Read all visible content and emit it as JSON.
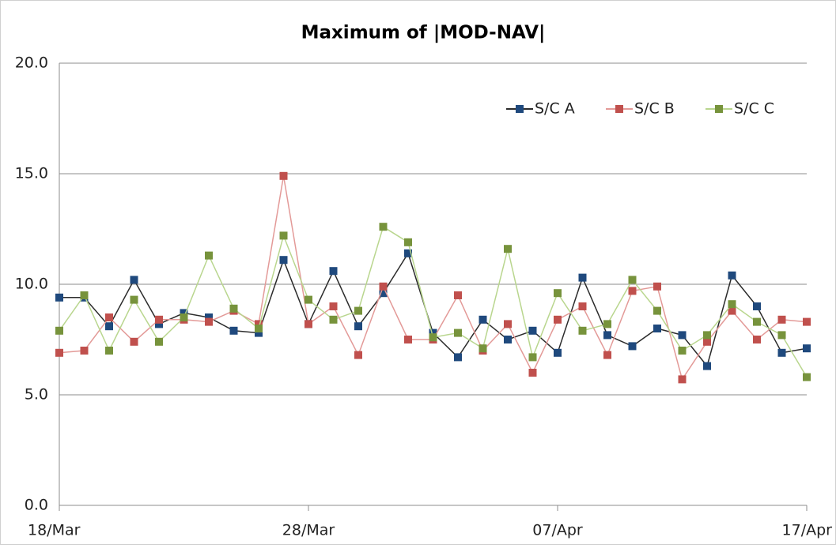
{
  "chart_data": {
    "type": "line",
    "title": "Maximum of |MOD-NAV|",
    "categories": [
      "18/Mar",
      null,
      null,
      null,
      null,
      null,
      null,
      null,
      null,
      null,
      "28/Mar",
      null,
      null,
      null,
      null,
      null,
      null,
      null,
      null,
      null,
      "07/Apr",
      null,
      null,
      null,
      null,
      null,
      null,
      null,
      null,
      null,
      "17/Apr"
    ],
    "series": [
      {
        "name": "S/C A",
        "color": "#1f497d",
        "line_color": "#2b2b2b",
        "values": [
          9.4,
          9.4,
          8.1,
          10.2,
          8.2,
          8.7,
          8.5,
          7.9,
          7.8,
          11.1,
          8.2,
          10.6,
          8.1,
          9.6,
          11.4,
          7.8,
          6.7,
          8.4,
          7.5,
          7.9,
          6.9,
          10.3,
          7.7,
          7.2,
          8.0,
          7.7,
          6.3,
          10.4,
          9.0,
          6.9,
          7.1
        ]
      },
      {
        "name": "S/C B",
        "color": "#c0504d",
        "line_color": "#e39a98",
        "values": [
          6.9,
          7.0,
          8.5,
          7.4,
          8.4,
          8.4,
          8.3,
          8.8,
          8.2,
          14.9,
          8.2,
          9.0,
          6.8,
          9.9,
          7.5,
          7.5,
          9.5,
          7.0,
          8.2,
          6.0,
          8.4,
          9.0,
          6.8,
          9.7,
          9.9,
          5.7,
          7.4,
          8.8,
          7.5,
          8.4,
          8.3
        ]
      },
      {
        "name": "S/C C",
        "color": "#77933c",
        "line_color": "#b9d68e",
        "values": [
          7.9,
          9.5,
          7.0,
          9.3,
          7.4,
          8.5,
          11.3,
          8.9,
          8.0,
          12.2,
          9.3,
          8.4,
          8.8,
          12.6,
          11.9,
          7.6,
          7.8,
          7.1,
          11.6,
          6.7,
          9.6,
          7.9,
          8.2,
          10.2,
          8.8,
          7.0,
          7.7,
          9.1,
          8.3,
          7.7,
          5.8
        ]
      }
    ],
    "ylim": [
      0,
      20
    ],
    "yticks": [
      {
        "value": 0,
        "label": "0.0"
      },
      {
        "value": 5,
        "label": "5.0"
      },
      {
        "value": 10,
        "label": "10.0"
      },
      {
        "value": 15,
        "label": "15.0"
      },
      {
        "value": 20,
        "label": "20.0"
      }
    ],
    "grid": true,
    "legend": "top-right"
  }
}
